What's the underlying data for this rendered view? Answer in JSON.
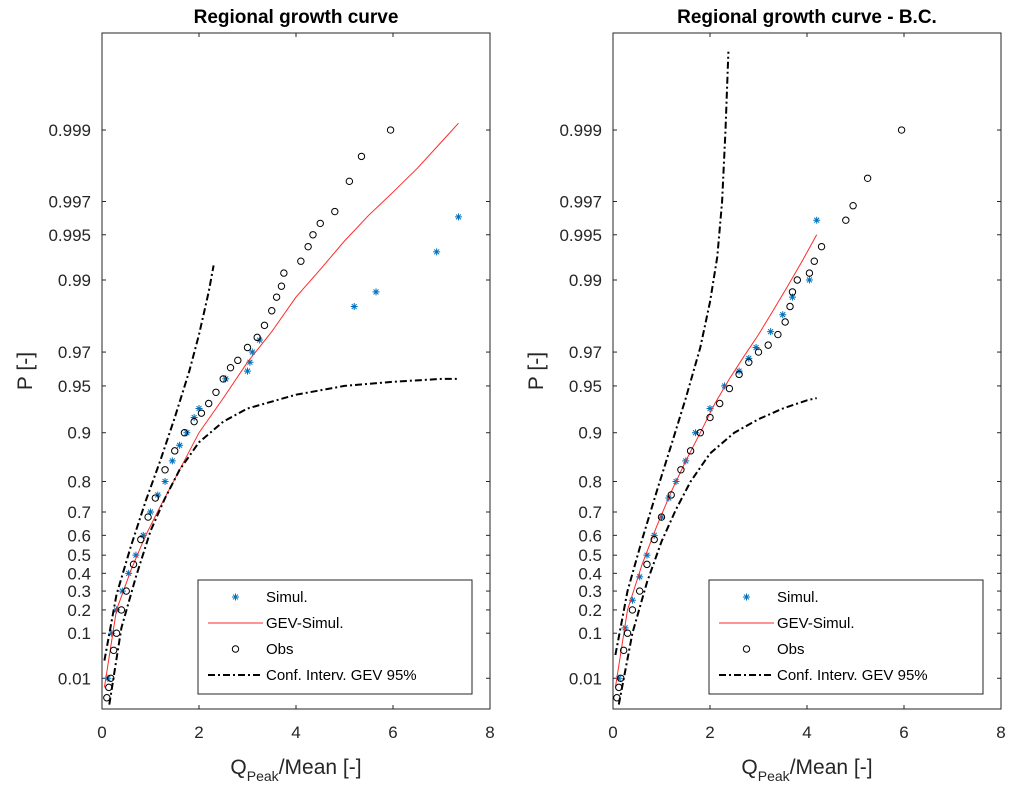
{
  "chart_data": [
    {
      "type": "scatter",
      "title": "Regional growth curve",
      "xlabel_main": "Q",
      "xlabel_sub": "Peak",
      "xlabel_rest": "/Mean [-]",
      "ylabel": "P [-]",
      "xlim": [
        0,
        8
      ],
      "x_ticks": [
        "0",
        "2",
        "4",
        "6",
        "8"
      ],
      "y_scale": "gumbel",
      "y_ticks": [
        "0.01",
        "0.1",
        "0.2",
        "0.3",
        "0.4",
        "0.5",
        "0.6",
        "0.7",
        "0.8",
        "0.9",
        "0.95",
        "0.97",
        "0.99",
        "0.995",
        "0.997",
        "0.999"
      ],
      "grid": false,
      "legend_position": "bottom-right",
      "legend": [
        "Simul.",
        "GEV-Simul.",
        "Obs",
        "Conf. Interv. GEV 95%"
      ],
      "series": [
        {
          "name": "Simul.",
          "marker": "asterisk",
          "color": "#0072BD",
          "x": [
            0.12,
            0.2,
            0.3,
            0.42,
            0.55,
            0.7,
            0.85,
            1.0,
            1.15,
            1.3,
            1.45,
            1.6,
            1.75,
            1.9,
            2.0,
            2.55,
            3.0,
            3.05,
            3.1,
            3.25,
            5.2,
            5.65,
            6.9,
            7.35
          ],
          "y": [
            0.01,
            0.1,
            0.2,
            0.3,
            0.4,
            0.5,
            0.6,
            0.7,
            0.76,
            0.8,
            0.85,
            0.88,
            0.9,
            0.92,
            0.93,
            0.955,
            0.96,
            0.965,
            0.97,
            0.975,
            0.985,
            0.988,
            0.9935,
            0.9962
          ]
        },
        {
          "name": "GEV-Simul.",
          "line": "solid",
          "color": "#ff2a2a",
          "x": [
            0.05,
            0.3,
            0.6,
            0.9,
            1.2,
            1.6,
            2.0,
            2.5,
            3.0,
            3.5,
            4.0,
            4.5,
            5.0,
            5.5,
            6.0,
            6.5,
            7.0,
            7.35
          ],
          "y": [
            0.005,
            0.2,
            0.42,
            0.6,
            0.72,
            0.83,
            0.9,
            0.94,
            0.965,
            0.978,
            0.987,
            0.9915,
            0.9945,
            0.9963,
            0.9974,
            0.9982,
            0.9988,
            0.9991
          ]
        },
        {
          "name": "Obs",
          "marker": "circle",
          "color": "#000000",
          "x": [
            0.1,
            0.14,
            0.18,
            0.24,
            0.3,
            0.4,
            0.5,
            0.65,
            0.8,
            0.95,
            1.1,
            1.3,
            1.5,
            1.7,
            1.9,
            2.05,
            2.2,
            2.35,
            2.5,
            2.65,
            2.8,
            3.0,
            3.2,
            3.35,
            3.5,
            3.6,
            3.7,
            3.75,
            4.1,
            4.25,
            4.35,
            4.5,
            4.8,
            5.1,
            5.35,
            5.95
          ],
          "y": [
            0.002,
            0.005,
            0.01,
            0.05,
            0.1,
            0.2,
            0.3,
            0.45,
            0.58,
            0.68,
            0.75,
            0.83,
            0.87,
            0.9,
            0.915,
            0.925,
            0.935,
            0.945,
            0.955,
            0.962,
            0.966,
            0.972,
            0.976,
            0.98,
            0.984,
            0.987,
            0.989,
            0.991,
            0.9925,
            0.994,
            0.995,
            0.9958,
            0.9965,
            0.9978,
            0.9985,
            0.999
          ]
        },
        {
          "name": "Conf. Interv. GEV 95% (upper)",
          "line": "dashdot",
          "color": "#000000",
          "x": [
            0.05,
            0.3,
            0.6,
            0.9,
            1.2,
            1.5,
            1.8,
            2.0,
            2.2,
            2.3
          ],
          "y": [
            0.03,
            0.28,
            0.55,
            0.74,
            0.85,
            0.92,
            0.96,
            0.977,
            0.988,
            0.992
          ]
        },
        {
          "name": "Conf. Interv. GEV 95% (lower)",
          "line": "dashdot",
          "color": "#000000",
          "x": [
            0.15,
            0.4,
            0.7,
            1.0,
            1.3,
            1.6,
            2.0,
            2.5,
            3.0,
            4.0,
            5.0,
            6.0,
            7.0,
            7.35
          ],
          "y": [
            0.001,
            0.12,
            0.38,
            0.62,
            0.75,
            0.83,
            0.885,
            0.915,
            0.93,
            0.943,
            0.95,
            0.953,
            0.955,
            0.955
          ]
        }
      ]
    },
    {
      "type": "scatter",
      "title": "Regional growth curve - B.C.",
      "xlabel_main": "Q",
      "xlabel_sub": "Peak",
      "xlabel_rest": "/Mean [-]",
      "ylabel": "P [-]",
      "xlim": [
        0,
        8
      ],
      "x_ticks": [
        "0",
        "2",
        "4",
        "6",
        "8"
      ],
      "y_scale": "gumbel",
      "y_ticks": [
        "0.01",
        "0.1",
        "0.2",
        "0.3",
        "0.4",
        "0.5",
        "0.6",
        "0.7",
        "0.8",
        "0.9",
        "0.95",
        "0.97",
        "0.99",
        "0.995",
        "0.997",
        "0.999"
      ],
      "grid": false,
      "legend_position": "bottom-right",
      "legend": [
        "Simul.",
        "GEV-Simul.",
        "Obs",
        "Conf. Interv. GEV 95%"
      ],
      "series": [
        {
          "name": "Simul.",
          "marker": "asterisk",
          "color": "#0072BD",
          "x": [
            0.12,
            0.25,
            0.4,
            0.55,
            0.7,
            0.85,
            1.0,
            1.15,
            1.3,
            1.5,
            1.7,
            2.0,
            2.3,
            2.6,
            2.8,
            2.95,
            3.25,
            3.5,
            3.7,
            4.05,
            4.2
          ],
          "y": [
            0.01,
            0.12,
            0.25,
            0.38,
            0.5,
            0.6,
            0.68,
            0.75,
            0.8,
            0.85,
            0.9,
            0.93,
            0.95,
            0.96,
            0.967,
            0.972,
            0.978,
            0.983,
            0.987,
            0.99,
            0.996
          ]
        },
        {
          "name": "GEV-Simul.",
          "line": "solid",
          "color": "#ff2a2a",
          "x": [
            0.05,
            0.3,
            0.6,
            0.9,
            1.2,
            1.5,
            1.8,
            2.1,
            2.4,
            2.7,
            3.0,
            3.3,
            3.6,
            3.9,
            4.2
          ],
          "y": [
            0.005,
            0.2,
            0.45,
            0.64,
            0.77,
            0.85,
            0.9,
            0.935,
            0.955,
            0.968,
            0.977,
            0.984,
            0.989,
            0.9925,
            0.995
          ]
        },
        {
          "name": "Obs",
          "marker": "circle",
          "color": "#000000",
          "x": [
            0.08,
            0.12,
            0.16,
            0.22,
            0.3,
            0.4,
            0.55,
            0.7,
            0.85,
            1.0,
            1.2,
            1.4,
            1.6,
            1.8,
            2.0,
            2.2,
            2.4,
            2.6,
            2.8,
            3.0,
            3.2,
            3.4,
            3.55,
            3.65,
            3.7,
            3.8,
            4.05,
            4.15,
            4.3,
            4.8,
            4.95,
            5.25,
            5.95
          ],
          "y": [
            0.002,
            0.005,
            0.01,
            0.05,
            0.1,
            0.2,
            0.3,
            0.45,
            0.58,
            0.68,
            0.76,
            0.83,
            0.87,
            0.9,
            0.92,
            0.935,
            0.948,
            0.958,
            0.965,
            0.97,
            0.973,
            0.977,
            0.981,
            0.985,
            0.988,
            0.99,
            0.991,
            0.9925,
            0.994,
            0.996,
            0.9968,
            0.9979,
            0.999
          ]
        },
        {
          "name": "Conf. Interv. GEV 95% (upper)",
          "line": "dashdot",
          "color": "#000000",
          "x": [
            0.05,
            0.3,
            0.6,
            0.9,
            1.2,
            1.5,
            1.8,
            2.0,
            2.15,
            2.25,
            2.32,
            2.38
          ],
          "y": [
            0.04,
            0.3,
            0.58,
            0.77,
            0.88,
            0.94,
            0.972,
            0.986,
            0.993,
            0.997,
            0.999,
            0.9997
          ]
        },
        {
          "name": "Conf. Interv. GEV 95% (lower)",
          "line": "dashdot",
          "color": "#000000",
          "x": [
            0.12,
            0.4,
            0.7,
            1.0,
            1.3,
            1.6,
            2.0,
            2.5,
            3.0,
            3.5,
            4.0,
            4.2
          ],
          "y": [
            0.001,
            0.1,
            0.35,
            0.57,
            0.71,
            0.8,
            0.865,
            0.9,
            0.918,
            0.93,
            0.938,
            0.94
          ]
        }
      ]
    }
  ]
}
